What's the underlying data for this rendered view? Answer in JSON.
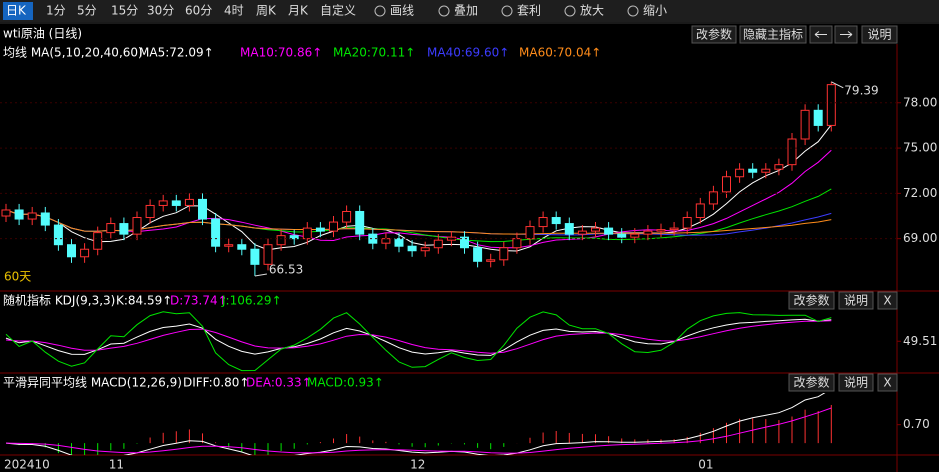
{
  "toolbar": {
    "periods": [
      "日K",
      "1分",
      "5分",
      "15分",
      "30分",
      "60分",
      "4时",
      "周K",
      "月K",
      "自定义"
    ],
    "tools": [
      "画线",
      "叠加",
      "套利",
      "放大",
      "缩小"
    ]
  },
  "title": "wti原油 (日线)",
  "buttons": {
    "params": "改参数",
    "hide": "隐藏主指标",
    "help": "说明",
    "close": "X"
  },
  "chart_data": [
    {
      "type": "candlestick",
      "indicator": "均线 MA(5,10,20,40,60)",
      "span_label": "60天",
      "categories": [
        "202410",
        null,
        null,
        null,
        null,
        null,
        null,
        null,
        "11",
        null,
        null,
        null,
        null,
        null,
        null,
        null,
        null,
        null,
        null,
        null,
        null,
        null,
        null,
        null,
        null,
        null,
        null,
        null,
        null,
        null,
        null,
        "12",
        null,
        null,
        null,
        null,
        null,
        null,
        null,
        null,
        null,
        null,
        null,
        null,
        null,
        null,
        null,
        null,
        null,
        null,
        null,
        null,
        null,
        "01",
        null,
        null,
        null,
        null,
        null,
        null,
        null,
        null,
        null,
        null
      ],
      "open": [
        70.5,
        70.9,
        70.3,
        70.7,
        69.9,
        68.6,
        67.8,
        68.3,
        69.4,
        70.0,
        69.3,
        70.4,
        71.2,
        71.5,
        71.2,
        71.6,
        70.3,
        68.5,
        68.6,
        68.3,
        67.3,
        68.6,
        69.2,
        69.0,
        69.7,
        69.5,
        70.1,
        70.8,
        69.3,
        68.7,
        69.0,
        68.5,
        68.2,
        68.4,
        68.9,
        69.1,
        68.4,
        67.5,
        67.6,
        68.4,
        69.0,
        69.8,
        70.4,
        70.0,
        69.3,
        69.5,
        69.7,
        69.3,
        69.1,
        69.3,
        69.5,
        69.6,
        69.7,
        70.4,
        71.3,
        72.1,
        73.1,
        73.6,
        73.4,
        73.6,
        73.9,
        75.6,
        77.5,
        76.5
      ],
      "high": [
        71.3,
        71.3,
        71.1,
        71.1,
        70.3,
        69.0,
        68.7,
        69.8,
        70.4,
        70.4,
        70.8,
        71.6,
        71.9,
        71.9,
        72.0,
        72.0,
        70.7,
        69.0,
        69.0,
        68.7,
        69.0,
        69.6,
        69.6,
        70.1,
        70.1,
        70.5,
        71.2,
        71.2,
        69.7,
        69.4,
        69.4,
        68.9,
        68.8,
        69.3,
        69.5,
        69.5,
        68.8,
        68.0,
        68.8,
        69.4,
        70.2,
        70.8,
        70.8,
        70.4,
        69.9,
        70.1,
        70.1,
        69.7,
        69.7,
        69.9,
        70.0,
        70.1,
        70.8,
        71.7,
        72.5,
        73.5,
        74.0,
        74.0,
        74.0,
        74.3,
        76.0,
        77.9,
        77.9,
        79.39
      ],
      "low": [
        70.1,
        69.9,
        69.9,
        69.5,
        68.2,
        67.4,
        67.4,
        67.9,
        69.0,
        68.9,
        68.9,
        70.0,
        70.8,
        70.8,
        70.8,
        69.9,
        68.1,
        68.1,
        67.9,
        66.53,
        66.9,
        68.2,
        68.6,
        68.6,
        69.1,
        69.1,
        69.7,
        68.9,
        68.3,
        68.3,
        68.1,
        67.8,
        67.8,
        68.0,
        68.5,
        68.0,
        67.1,
        67.1,
        67.2,
        68.0,
        68.6,
        69.4,
        69.6,
        68.9,
        68.9,
        69.1,
        68.9,
        68.7,
        68.7,
        68.9,
        69.1,
        69.2,
        69.3,
        70.0,
        70.9,
        71.7,
        72.7,
        73.0,
        73.0,
        73.2,
        73.5,
        75.2,
        76.1,
        76.1
      ],
      "close": [
        70.9,
        70.3,
        70.7,
        69.9,
        68.6,
        67.8,
        68.3,
        69.4,
        70.0,
        69.3,
        70.4,
        71.2,
        71.5,
        71.2,
        71.6,
        70.3,
        68.5,
        68.6,
        68.3,
        67.3,
        68.6,
        69.2,
        69.0,
        69.7,
        69.5,
        70.1,
        70.8,
        69.3,
        68.7,
        69.0,
        68.5,
        68.2,
        68.4,
        68.9,
        69.1,
        68.4,
        67.5,
        67.6,
        68.4,
        69.0,
        69.8,
        70.4,
        70.0,
        69.3,
        69.5,
        69.7,
        69.3,
        69.1,
        69.3,
        69.5,
        69.6,
        69.7,
        70.4,
        71.3,
        72.1,
        73.1,
        73.6,
        73.4,
        73.6,
        73.9,
        75.6,
        77.5,
        76.5,
        79.2
      ],
      "up_color": "#ff3232",
      "down_color": "#54fcfc",
      "series": [
        {
          "name": "MA5:72.09↑",
          "color": "#ffffff",
          "period": 5
        },
        {
          "name": "MA10:70.86↑",
          "color": "#ff00ff",
          "period": 10
        },
        {
          "name": "MA20:70.11↑",
          "color": "#00e600",
          "period": 20
        },
        {
          "name": "MA40:69.60↑",
          "color": "#3c3cff",
          "period": 40
        },
        {
          "name": "MA60:70.04↑",
          "color": "#ff8c1a",
          "period": 60
        }
      ],
      "ylim": [
        65.6,
        80.7
      ],
      "yticks": [
        {
          "value": 69,
          "label": "69.00"
        },
        {
          "value": 72,
          "label": "72.00"
        },
        {
          "value": 75,
          "label": "75.00"
        },
        {
          "value": 78,
          "label": "78.00"
        }
      ],
      "grid": true
    },
    {
      "type": "kdj",
      "indicator": "随机指标 KDJ(9,3,3)",
      "params": [
        9,
        3,
        3
      ],
      "series": [
        {
          "name": "K:84.59↑",
          "color": "#ffffff"
        },
        {
          "name": "D:73.74↑",
          "color": "#ff00ff"
        },
        {
          "name": "J:106.29↑",
          "color": "#00e600"
        }
      ],
      "ylim": [
        -10,
        110
      ],
      "yticks": [
        49.51
      ]
    },
    {
      "type": "macd",
      "indicator": "平滑异同平均线 MACD(12,26,9)",
      "params": [
        12,
        26,
        9
      ],
      "series": [
        {
          "name": "DIFF:0.80↑",
          "color": "#ffffff"
        },
        {
          "name": "DEA:0.33↑",
          "color": "#ff00ff"
        },
        {
          "name": "MACD:0.93↑",
          "color": "#00e600"
        }
      ],
      "up_color": "#ff3232",
      "down_color": "#00e600",
      "ylim": [
        -0.45,
        1.9
      ],
      "yticks": [
        {
          "value": 0.7,
          "label": "0.70"
        }
      ]
    }
  ]
}
